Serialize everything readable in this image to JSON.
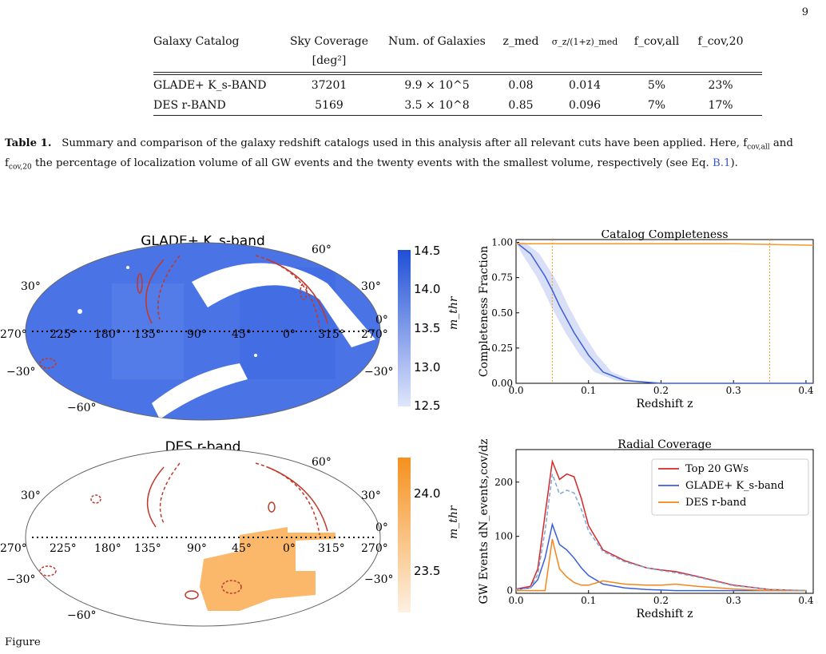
{
  "page_number": "9",
  "table": {
    "headers": [
      "Galaxy Catalog",
      "Sky Coverage",
      "Num. of Galaxies",
      "z_med",
      "σ_z/(1+z)_med",
      "f_cov,all",
      "f_cov,20"
    ],
    "subheader": "[deg²]",
    "rows": [
      [
        "GLADE+ K_s-BAND",
        "37201",
        "9.9 × 10^5",
        "0.08",
        "0.014",
        "5%",
        "23%"
      ],
      [
        "DES r-BAND",
        "5169",
        "3.5 × 10^8",
        "0.85",
        "0.096",
        "7%",
        "17%"
      ]
    ]
  },
  "caption": {
    "label": "Table 1.",
    "text1": "Summary and comparison of the galaxy redshift catalogs used in this analysis after all relevant cuts have been applied. Here, f",
    "sub1": "cov,all",
    "text2": " and f",
    "sub2": "cov,20",
    "text3": " the percentage of localization volume of all GW events and the twenty events with the smallest volume, respectively (see Eq. ",
    "eq_ref": "B.1",
    "text4": ")."
  },
  "maps": {
    "glade_title": "GLADE+ K_s-band",
    "des_title": "DES r-band",
    "lon_labels": [
      "270°",
      "225°",
      "180°",
      "135°",
      "90°",
      "45°",
      "0°",
      "315°",
      "270°"
    ],
    "lat_labels": [
      "60°",
      "30°",
      "0°",
      "−30°",
      "−60°"
    ],
    "glade_colorbar": {
      "label": "m_thr",
      "ticks": [
        "14.5",
        "14.0",
        "13.5",
        "13.0",
        "12.5"
      ],
      "top_color": "#1f4fd6",
      "bottom_color": "#dfe6fb"
    },
    "des_colorbar": {
      "label": "m_thr",
      "ticks": [
        "24.0",
        "23.5"
      ],
      "top_color": "#f5901e",
      "bottom_color": "#fdf1e2"
    }
  },
  "chart_data": [
    {
      "type": "line",
      "title": "Catalog Completeness",
      "xlabel": "Redshift z",
      "ylabel": "Completeness Fraction",
      "xlim": [
        0.0,
        0.41
      ],
      "ylim": [
        0.0,
        1.02
      ],
      "xticks": [
        "0.0",
        "0.1",
        "0.2",
        "0.3",
        "0.4"
      ],
      "yticks": [
        "0.00",
        "0.25",
        "0.50",
        "0.75",
        "1.00"
      ],
      "x": [
        0.0,
        0.02,
        0.04,
        0.05,
        0.06,
        0.08,
        0.1,
        0.12,
        0.15,
        0.2,
        0.3,
        0.41
      ],
      "series": [
        {
          "color": "#3a5fd9",
          "values": [
            1.0,
            0.92,
            0.76,
            0.66,
            0.55,
            0.36,
            0.2,
            0.08,
            0.02,
            0.0,
            0.0,
            0.0
          ]
        },
        {
          "color": "#f59a23",
          "values": [
            0.99,
            0.99,
            0.99,
            0.99,
            0.99,
            0.99,
            0.99,
            0.99,
            0.99,
            0.99,
            0.99,
            0.98
          ]
        }
      ],
      "vlines": [
        0.05,
        0.35
      ]
    },
    {
      "type": "line",
      "title": "Radial Coverage",
      "xlabel": "Redshift z",
      "ylabel": "GW Events dN_events,cov/dz",
      "xlim": [
        0.0,
        0.41
      ],
      "ylim": [
        -5,
        260
      ],
      "xticks": [
        "0.0",
        "0.1",
        "0.2",
        "0.3",
        "0.4"
      ],
      "yticks": [
        "0",
        "100",
        "200"
      ],
      "legend_position": "top-right",
      "x": [
        0.0,
        0.02,
        0.03,
        0.04,
        0.05,
        0.06,
        0.07,
        0.08,
        0.09,
        0.1,
        0.12,
        0.15,
        0.18,
        0.2,
        0.22,
        0.25,
        0.3,
        0.35,
        0.4
      ],
      "series": [
        {
          "name": "Top 20 GWs",
          "color": "#d62728",
          "values": [
            3,
            8,
            40,
            140,
            238,
            205,
            215,
            210,
            170,
            120,
            75,
            55,
            42,
            38,
            35,
            26,
            10,
            2,
            0
          ]
        },
        {
          "name": "GLADE+ K_s-band",
          "color": "#3a5fd9",
          "values": [
            2,
            5,
            20,
            60,
            122,
            85,
            75,
            60,
            42,
            28,
            12,
            5,
            2,
            1,
            0,
            0,
            0,
            0,
            0
          ]
        },
        {
          "name": "DES r-band",
          "color": "#f58518",
          "values": [
            0,
            0,
            0,
            0,
            95,
            40,
            25,
            15,
            10,
            10,
            18,
            12,
            10,
            10,
            12,
            8,
            3,
            0,
            0
          ]
        },
        {
          "name": "",
          "color": "#7ea6d8",
          "dashed": true,
          "values": [
            2,
            5,
            30,
            110,
            215,
            178,
            185,
            180,
            150,
            110,
            72,
            53,
            42,
            37,
            33,
            25,
            9,
            2,
            0
          ]
        }
      ]
    }
  ],
  "bottom_caption": "Figure"
}
